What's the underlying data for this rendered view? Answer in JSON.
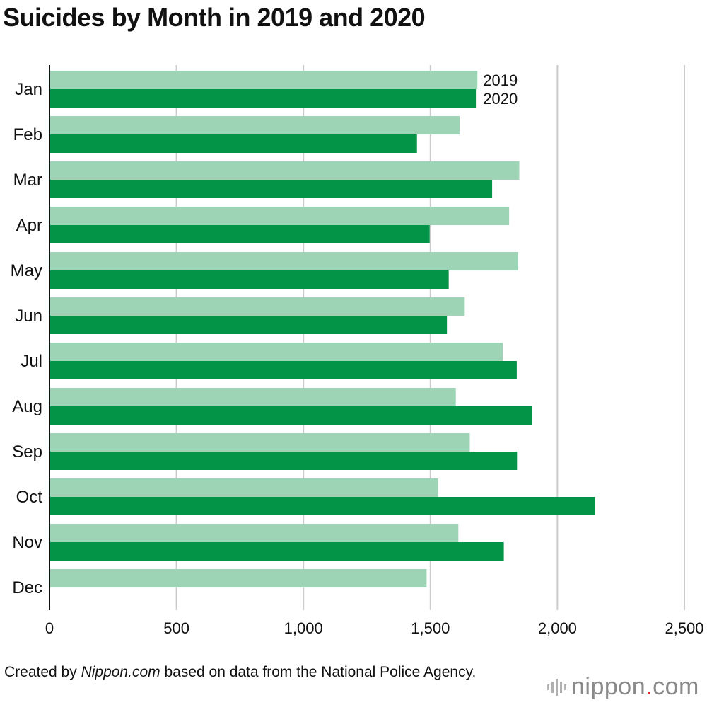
{
  "chart_data": {
    "type": "bar",
    "orientation": "horizontal",
    "title": "Suicides by Month in 2019 and 2020",
    "xlabel": "",
    "ylabel": "",
    "categories": [
      "Jan",
      "Feb",
      "Mar",
      "Apr",
      "May",
      "Jun",
      "Jul",
      "Aug",
      "Sep",
      "Oct",
      "Nov",
      "Dec"
    ],
    "series": [
      {
        "name": "2019",
        "color": "#9dd4b6",
        "values": [
          1685,
          1615,
          1850,
          1810,
          1845,
          1635,
          1785,
          1600,
          1655,
          1530,
          1610,
          1485
        ]
      },
      {
        "name": "2020",
        "color": "#049447",
        "values": [
          1679,
          1447,
          1743,
          1497,
          1572,
          1565,
          1840,
          1899,
          1841,
          2148,
          1789,
          null
        ]
      }
    ],
    "xlim": [
      0,
      2500
    ],
    "xticks": [
      "0",
      "500",
      "1,000",
      "1,500",
      "2,000",
      "2,500"
    ],
    "grid": true,
    "legend": "inline labels beside Jan bars"
  },
  "credit": {
    "prefix": "Created by ",
    "source_name": "Nippon.com",
    "suffix": " based on data from the National Police Agency."
  },
  "logo": {
    "name": "nippon",
    "dot": ".",
    "tld": "com",
    "icon": "nippon-bars-icon"
  }
}
